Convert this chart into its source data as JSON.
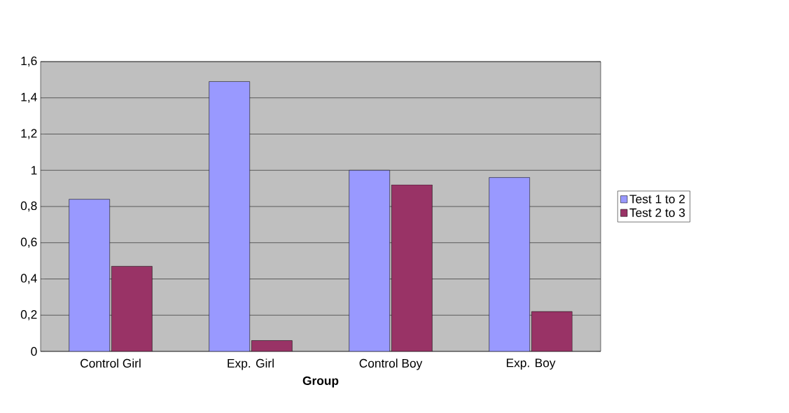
{
  "chart_data": {
    "type": "bar",
    "xlabel": "Group",
    "categories": [
      "Control Girl",
      "Exp. Girl",
      "Control Boy",
      "Exp. Boy"
    ],
    "series": [
      {
        "name": "Test 1 to 2",
        "color": "#9999ff",
        "values": [
          0.84,
          1.49,
          1.0,
          0.96
        ]
      },
      {
        "name": "Test 2 to 3",
        "color": "#993366",
        "values": [
          0.47,
          0.06,
          0.92,
          0.22
        ]
      }
    ],
    "ylim": [
      0,
      1.6
    ],
    "yticks": [
      0,
      {
        "value": 0.2,
        "label": "0,2"
      },
      {
        "value": 0.4,
        "label": "0,4"
      },
      {
        "value": 0.6,
        "label": "0,6"
      },
      {
        "value": 0.8,
        "label": "0,8"
      },
      1,
      {
        "value": 1.2,
        "label": "1,2"
      },
      {
        "value": 1.4,
        "label": "1,4"
      },
      {
        "value": 1.6,
        "label": "1,6"
      }
    ],
    "grid": "y",
    "legend": "right"
  }
}
